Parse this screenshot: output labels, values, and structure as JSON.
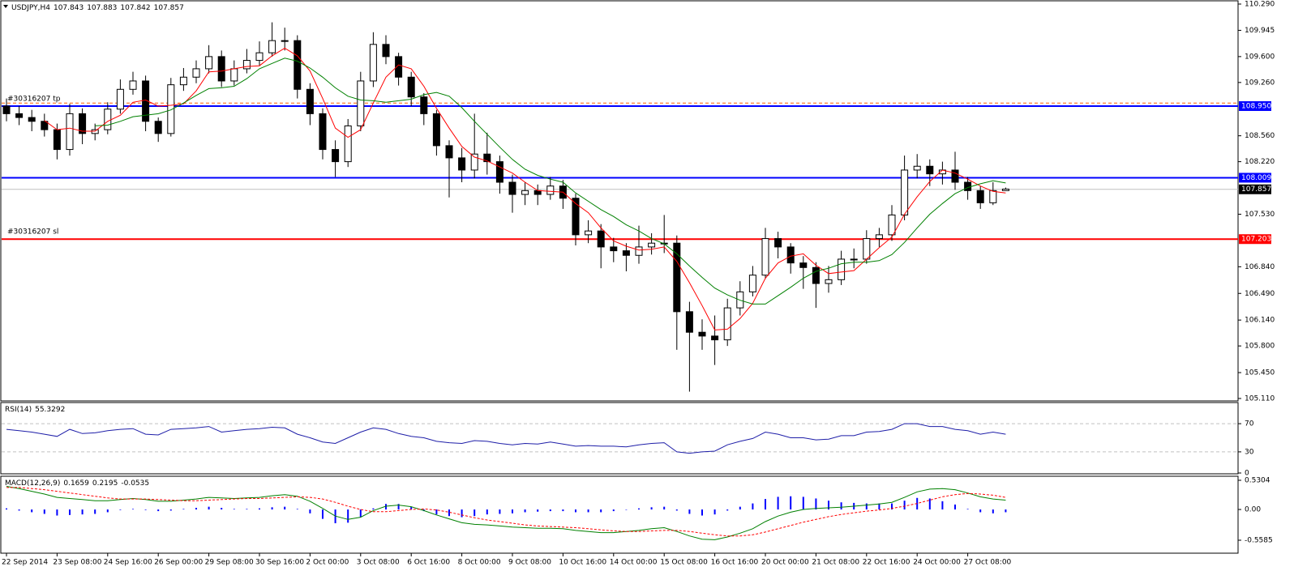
{
  "chart_data": [
    {
      "type": "candlestick",
      "title": "USDJPY,H4",
      "readout": [
        107.843,
        107.883,
        107.842,
        107.857
      ],
      "up_color": "#ffffff",
      "down_color": "#000000",
      "ylim": [
        105.11,
        110.29
      ],
      "yticks": [
        {
          "value": 110.29,
          "label": "110.290"
        },
        109.945,
        {
          "value": 109.6,
          "label": "109.600"
        },
        {
          "value": 109.26,
          "label": "109.260"
        },
        {
          "value": 108.56,
          "label": "108.560"
        },
        {
          "value": 108.22,
          "label": "108.220"
        },
        {
          "value": 107.53,
          "label": "107.530"
        },
        {
          "value": 106.84,
          "label": "106.840"
        },
        {
          "value": 106.49,
          "label": "106.490"
        },
        {
          "value": 106.14,
          "label": "106.140"
        },
        {
          "value": 105.8,
          "label": "105.800"
        },
        {
          "value": 105.45,
          "label": "105.450"
        },
        {
          "value": 105.11,
          "label": "105.110"
        }
      ],
      "levels": [
        {
          "value": 108.99,
          "color": "#ff6000",
          "dash": true
        },
        {
          "value": 108.95,
          "label": "108.950",
          "color": "#0000ff",
          "box": "#0000ff",
          "text": "#30316207 tp"
        },
        {
          "value": 108.009,
          "color": "#0000ff",
          "box": "#0000ff"
        },
        {
          "value": 107.857,
          "color": "#c0c0c0",
          "box": "#000000"
        },
        {
          "value": 107.203,
          "color": "#ff0000",
          "box": "#ff0000",
          "text": "#30316207 sl"
        }
      ],
      "open": [
        108.95,
        108.85,
        108.8,
        108.75,
        108.64,
        108.38,
        108.85,
        108.59,
        108.64,
        108.91,
        109.17,
        109.28,
        108.75,
        108.59,
        109.23,
        109.33,
        109.44,
        109.6,
        109.28,
        109.44,
        109.55,
        109.65,
        109.81,
        109.81,
        109.17,
        108.85,
        108.38,
        108.22,
        108.69,
        109.28,
        109.76,
        109.6,
        109.33,
        109.07,
        108.85,
        108.43,
        108.27,
        108.11,
        108.32,
        108.22,
        107.95,
        107.79,
        107.84,
        107.79,
        107.9,
        107.74,
        107.26,
        107.31,
        107.1,
        107.05,
        106.99,
        107.1,
        107.15,
        107.15,
        106.25,
        105.98,
        105.93,
        105.88,
        106.3,
        106.51,
        106.73,
        107.21,
        107.1,
        106.89,
        106.83,
        106.62,
        106.67,
        106.94,
        106.94,
        107.21,
        107.26,
        107.52,
        108.11,
        108.16,
        108.06,
        108.11,
        107.95,
        107.84,
        107.68,
        107.84
      ],
      "high": [
        109.05,
        108.95,
        108.9,
        108.85,
        108.72,
        108.98,
        108.92,
        108.72,
        109.0,
        109.3,
        109.4,
        109.35,
        108.8,
        109.32,
        109.45,
        109.55,
        109.75,
        109.68,
        109.55,
        109.7,
        109.8,
        110.05,
        109.98,
        109.88,
        109.25,
        108.92,
        108.5,
        108.78,
        109.4,
        109.92,
        109.88,
        109.65,
        109.4,
        109.12,
        108.9,
        108.5,
        108.4,
        108.85,
        108.6,
        108.3,
        108.05,
        107.95,
        107.92,
        108.02,
        107.98,
        107.8,
        107.45,
        107.4,
        107.22,
        107.15,
        107.38,
        107.28,
        107.52,
        107.25,
        106.38,
        106.15,
        106.2,
        106.42,
        106.65,
        106.85,
        107.35,
        107.3,
        107.15,
        106.98,
        106.9,
        106.85,
        107.05,
        107.08,
        107.32,
        107.35,
        107.65,
        108.3,
        108.32,
        108.25,
        108.22,
        108.35,
        108.02,
        107.9,
        107.95,
        107.88
      ],
      "low": [
        108.75,
        108.7,
        108.62,
        108.55,
        108.25,
        108.3,
        108.45,
        108.5,
        108.58,
        108.85,
        109.1,
        108.62,
        108.48,
        108.55,
        109.15,
        109.25,
        109.38,
        109.2,
        109.22,
        109.38,
        109.48,
        109.6,
        109.68,
        109.05,
        108.7,
        108.25,
        108.02,
        108.15,
        108.62,
        109.2,
        109.5,
        109.22,
        108.95,
        108.7,
        108.3,
        107.75,
        107.95,
        108.0,
        108.05,
        107.8,
        107.55,
        107.65,
        107.65,
        107.72,
        107.6,
        107.12,
        107.15,
        106.82,
        106.9,
        106.78,
        106.88,
        107.0,
        107.02,
        105.75,
        105.2,
        105.75,
        105.55,
        105.8,
        106.2,
        106.45,
        106.68,
        106.95,
        106.75,
        106.55,
        106.3,
        106.5,
        106.6,
        106.82,
        106.88,
        107.1,
        107.18,
        107.45,
        108.0,
        107.9,
        107.92,
        107.85,
        107.72,
        107.6,
        107.65,
        107.84
      ],
      "close": [
        108.85,
        108.8,
        108.75,
        108.64,
        108.38,
        108.85,
        108.59,
        108.64,
        108.91,
        109.17,
        109.28,
        108.75,
        108.59,
        109.23,
        109.33,
        109.44,
        109.6,
        109.28,
        109.44,
        109.55,
        109.65,
        109.81,
        109.81,
        109.17,
        108.85,
        108.38,
        108.22,
        108.69,
        109.28,
        109.76,
        109.6,
        109.33,
        109.07,
        108.85,
        108.43,
        108.27,
        108.11,
        108.32,
        108.22,
        107.95,
        107.79,
        107.84,
        107.79,
        107.9,
        107.74,
        107.26,
        107.31,
        107.1,
        107.05,
        106.99,
        107.1,
        107.15,
        107.15,
        106.25,
        105.98,
        105.93,
        105.88,
        106.3,
        106.51,
        106.73,
        107.21,
        107.1,
        106.89,
        106.83,
        106.62,
        106.67,
        106.94,
        106.94,
        107.21,
        107.26,
        107.52,
        108.11,
        108.16,
        108.06,
        108.11,
        107.95,
        107.84,
        107.68,
        107.84,
        107.86
      ],
      "series": [
        {
          "color": "#ff0000",
          "values": [
            null,
            null,
            null,
            108.76,
            108.64,
            108.66,
            108.62,
            108.62,
            108.75,
            108.83,
            109.0,
            109.03,
            108.95,
            108.96,
            108.98,
            109.15,
            109.4,
            109.41,
            109.44,
            109.47,
            109.48,
            109.61,
            109.71,
            109.61,
            109.41,
            109.05,
            108.66,
            108.54,
            108.64,
            108.99,
            109.33,
            109.49,
            109.44,
            109.21,
            108.92,
            108.66,
            108.42,
            108.28,
            108.23,
            108.15,
            108.07,
            107.95,
            107.84,
            107.83,
            107.82,
            107.67,
            107.55,
            107.35,
            107.18,
            107.11,
            107.06,
            107.07,
            107.1,
            106.91,
            106.63,
            106.33,
            106.01,
            106.02,
            106.16,
            106.36,
            106.69,
            106.89,
            106.98,
            107.01,
            106.86,
            106.75,
            106.77,
            106.79,
            106.94,
            107.09,
            107.23,
            107.53,
            107.76,
            107.96,
            108.11,
            108.07,
            107.99,
            107.9,
            107.83,
            107.81
          ]
        },
        {
          "color": "#008000",
          "values": [
            null,
            null,
            null,
            null,
            null,
            null,
            null,
            108.69,
            108.7,
            108.75,
            108.81,
            108.83,
            108.85,
            108.9,
            108.99,
            109.09,
            109.18,
            109.19,
            109.21,
            109.31,
            109.44,
            109.51,
            109.58,
            109.54,
            109.45,
            109.33,
            109.19,
            109.08,
            109.03,
            109.02,
            109.0,
            109.02,
            109.04,
            109.1,
            109.13,
            109.08,
            108.93,
            108.75,
            108.58,
            108.41,
            108.25,
            108.12,
            108.04,
            107.99,
            107.95,
            107.81,
            107.7,
            107.59,
            107.5,
            107.39,
            107.31,
            107.21,
            107.14,
            107.01,
            106.85,
            106.7,
            106.56,
            106.47,
            106.4,
            106.35,
            106.35,
            106.46,
            106.57,
            106.69,
            106.78,
            106.82,
            106.88,
            106.9,
            106.9,
            106.92,
            107.0,
            107.16,
            107.35,
            107.53,
            107.67,
            107.8,
            107.88,
            107.93,
            107.97,
            107.94
          ]
        }
      ]
    },
    {
      "type": "line",
      "title": "RSI(14)",
      "readout": [
        55.3292
      ],
      "ylim": [
        0,
        100
      ],
      "yticks": [
        70,
        30,
        0
      ],
      "levels": [
        {
          "value": 70,
          "color": "#c0c0c0",
          "dash": true
        },
        {
          "value": 30,
          "color": "#c0c0c0",
          "dash": true
        }
      ],
      "series": [
        {
          "color": "#1e1ea8",
          "values": [
            62,
            60,
            58,
            55,
            52,
            62,
            56,
            57,
            60,
            62,
            63,
            55,
            54,
            62,
            63,
            64,
            66,
            58,
            60,
            62,
            63,
            65,
            64,
            55,
            50,
            44,
            42,
            50,
            58,
            64,
            62,
            56,
            52,
            50,
            45,
            43,
            42,
            46,
            45,
            42,
            40,
            42,
            41,
            44,
            41,
            38,
            39,
            38,
            38,
            37,
            40,
            42,
            43,
            30,
            28,
            30,
            31,
            40,
            45,
            49,
            58,
            55,
            50,
            50,
            47,
            48,
            53,
            53,
            58,
            59,
            62,
            70,
            70,
            66,
            66,
            62,
            60,
            55,
            58,
            55
          ]
        }
      ]
    },
    {
      "type": "macd",
      "title": "MACD(12,26,9)",
      "readout": [
        0.1659,
        0.2195,
        -0.0535
      ],
      "ylim": [
        -0.5585,
        0.5304
      ],
      "yticks": [
        0.5304,
        {
          "value": 0,
          "label": "0.00"
        },
        -0.5585
      ],
      "hist_color": "#0000ff",
      "values": [
        0.02,
        -0.02,
        -0.05,
        -0.08,
        -0.11,
        -0.1,
        -0.09,
        -0.08,
        -0.05,
        -0.01,
        0.01,
        -0.01,
        -0.03,
        -0.02,
        0.01,
        0.03,
        0.05,
        0.03,
        0.01,
        0.01,
        0.02,
        0.04,
        0.05,
        0.01,
        -0.07,
        -0.17,
        -0.25,
        -0.24,
        -0.14,
        0.02,
        0.1,
        0.1,
        0.05,
        -0.03,
        -0.09,
        -0.12,
        -0.14,
        -0.12,
        -0.09,
        -0.08,
        -0.07,
        -0.05,
        -0.04,
        -0.03,
        -0.03,
        -0.05,
        -0.05,
        -0.05,
        -0.03,
        0.0,
        0.02,
        0.04,
        0.05,
        -0.02,
        -0.08,
        -0.11,
        -0.09,
        -0.02,
        0.05,
        0.11,
        0.19,
        0.23,
        0.24,
        0.23,
        0.2,
        0.16,
        0.13,
        0.12,
        0.11,
        0.11,
        0.11,
        0.16,
        0.21,
        0.2,
        0.15,
        0.09,
        0.01,
        -0.05,
        -0.07,
        -0.05
      ],
      "series": [
        {
          "color": "#008000",
          "values": [
            0.42,
            0.38,
            0.33,
            0.28,
            0.22,
            0.2,
            0.18,
            0.16,
            0.16,
            0.18,
            0.2,
            0.18,
            0.15,
            0.15,
            0.17,
            0.19,
            0.22,
            0.21,
            0.2,
            0.21,
            0.22,
            0.25,
            0.27,
            0.24,
            0.15,
            0.02,
            -0.12,
            -0.18,
            -0.14,
            -0.02,
            0.06,
            0.08,
            0.05,
            -0.02,
            -0.1,
            -0.17,
            -0.24,
            -0.27,
            -0.28,
            -0.3,
            -0.32,
            -0.33,
            -0.34,
            -0.34,
            -0.35,
            -0.38,
            -0.4,
            -0.42,
            -0.42,
            -0.4,
            -0.38,
            -0.35,
            -0.33,
            -0.4,
            -0.48,
            -0.54,
            -0.55,
            -0.5,
            -0.43,
            -0.35,
            -0.22,
            -0.12,
            -0.05,
            0.0,
            0.02,
            0.03,
            0.04,
            0.06,
            0.08,
            0.1,
            0.13,
            0.22,
            0.32,
            0.37,
            0.38,
            0.36,
            0.3,
            0.23,
            0.19,
            0.17
          ]
        },
        {
          "color": "#ff0000",
          "dash": true,
          "values": [
            0.4,
            0.4,
            0.38,
            0.36,
            0.33,
            0.3,
            0.27,
            0.24,
            0.21,
            0.19,
            0.19,
            0.19,
            0.18,
            0.17,
            0.16,
            0.16,
            0.17,
            0.18,
            0.19,
            0.2,
            0.2,
            0.21,
            0.22,
            0.23,
            0.22,
            0.19,
            0.13,
            0.06,
            0.0,
            -0.04,
            -0.04,
            -0.02,
            0.0,
            0.01,
            -0.01,
            -0.05,
            -0.1,
            -0.15,
            -0.19,
            -0.22,
            -0.25,
            -0.28,
            -0.3,
            -0.31,
            -0.32,
            -0.33,
            -0.35,
            -0.37,
            -0.39,
            -0.4,
            -0.4,
            -0.39,
            -0.38,
            -0.38,
            -0.4,
            -0.43,
            -0.46,
            -0.48,
            -0.48,
            -0.46,
            -0.41,
            -0.35,
            -0.29,
            -0.23,
            -0.18,
            -0.13,
            -0.09,
            -0.06,
            -0.03,
            -0.01,
            0.02,
            0.06,
            0.11,
            0.17,
            0.23,
            0.27,
            0.29,
            0.28,
            0.26,
            0.22
          ]
        }
      ],
      "x_labels": [
        "22 Sep 2014",
        "23 Sep 08:00",
        "24 Sep 16:00",
        "26 Sep 00:00",
        "29 Sep 08:00",
        "30 Sep 16:00",
        "2 Oct 00:00",
        "3 Oct 08:00",
        "6 Oct 16:00",
        "8 Oct 00:00",
        "9 Oct 08:00",
        "10 Oct 16:00",
        "14 Oct 00:00",
        "15 Oct 08:00",
        "16 Oct 16:00",
        "20 Oct 00:00",
        "21 Oct 08:00",
        "22 Oct 16:00",
        "24 Oct 00:00",
        "27 Oct 08:00"
      ]
    }
  ]
}
